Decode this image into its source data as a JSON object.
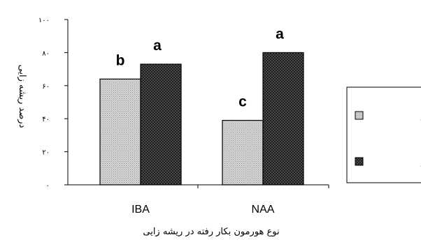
{
  "chart_data": {
    "type": "bar",
    "categories": [
      "IBA",
      "NAA"
    ],
    "series": [
      {
        "name": "یک شبانه روز",
        "values": [
          64,
          39
        ],
        "pattern": "light-dotted"
      },
      {
        "name": "سه شبانه روز",
        "values": [
          73,
          80
        ],
        "pattern": "dark-checkered"
      }
    ],
    "significance": [
      [
        "b",
        "a"
      ],
      [
        "c",
        "a"
      ]
    ],
    "ylim": [
      0,
      100
    ],
    "yticks": [
      0,
      20,
      40,
      60,
      80,
      100
    ],
    "ytick_labels": [
      "٠",
      "٢٠",
      "۴٠",
      "۶٠",
      "٨٠",
      "١٠٠"
    ],
    "xlabel": "نوع هورمون بکار رفته در ریشه زایی",
    "ylabel": "درصد ریشه زایی",
    "legend_position": "right",
    "grid": false,
    "colors": {
      "light": "#c8c8c8",
      "dark": "#2a2a2a",
      "axis": "#000000"
    }
  }
}
